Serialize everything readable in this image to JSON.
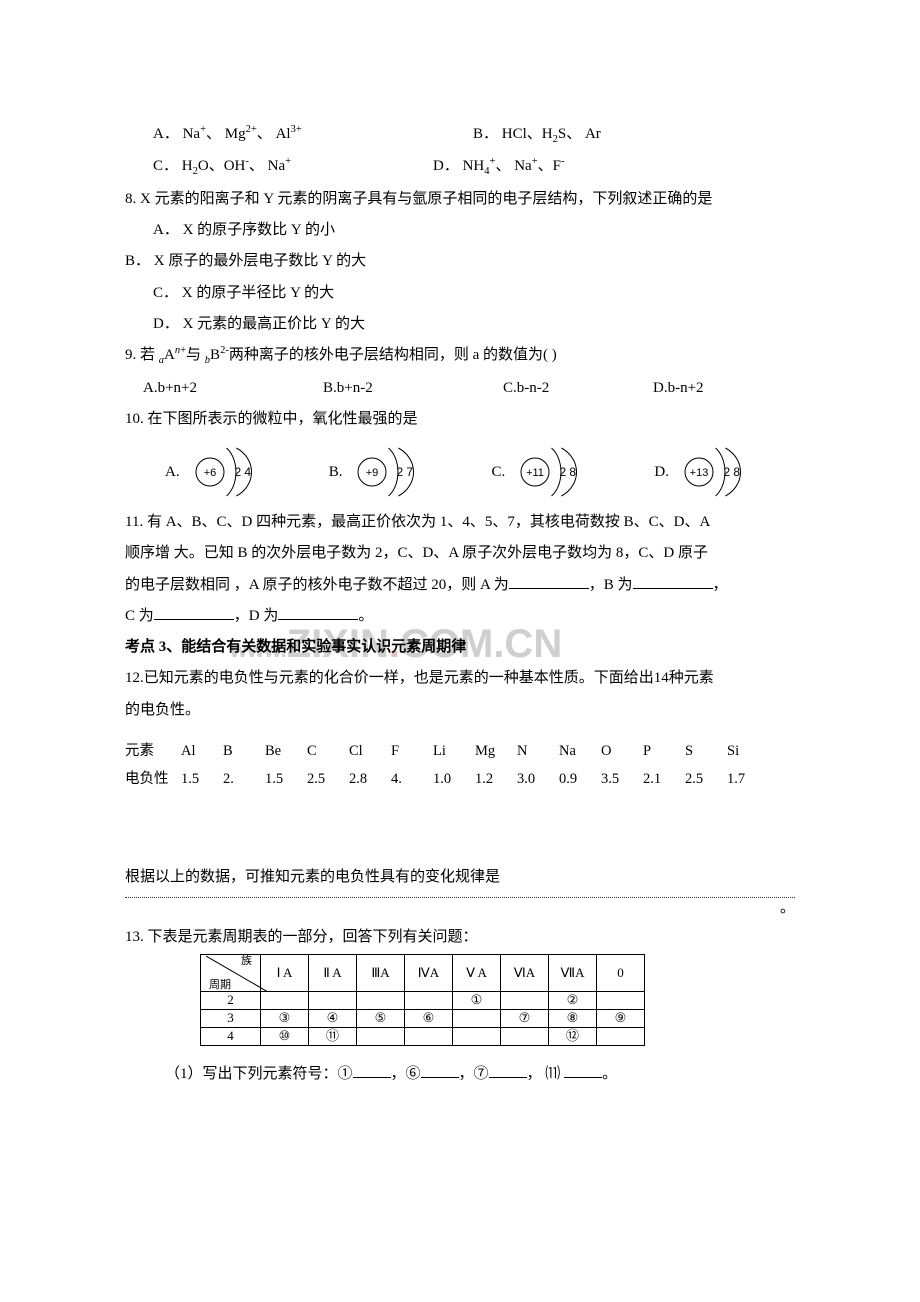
{
  "q7": {
    "optA_pre": "A．",
    "optA_s1": "Na",
    "optA_s2": "Mg",
    "optA_s3": "Al",
    "optB_pre": "B．",
    "optB_s1": "HCl、H",
    "optB_s2": "S、 Ar",
    "optC_pre": "C．",
    "optC_s1": "H",
    "optC_s2": "O、OH",
    "optC_s3": "、 Na",
    "optD_pre": "D．",
    "optD_s1": "NH",
    "optD_s2": "、 Na",
    "optD_s3": "、F"
  },
  "q8": {
    "stem": "8. X 元素的阳离子和 Y 元素的阴离子具有与氩原子相同的电子层结构，下列叙述正确的是",
    "A": "A．  X 的原子序数比 Y 的小",
    "B": "B．  X 原子的最外层电子数比 Y 的大",
    "C": "C．  X 的原子半径比 Y 的大",
    "D": "D．  X 元素的最高正价比 Y 的大"
  },
  "q9": {
    "stem_pre": "9.  若 ",
    "stem_mid1": "A",
    "stem_mid2": "与 ",
    "stem_mid3": "B",
    "stem_post": "两种离子的核外电子层结构相同，则 a 的数值为(       )",
    "A": "A.b+n+2",
    "B": "B.b+n-2",
    "C": "C.b-n-2",
    "D": "D.b-n+2"
  },
  "q10": {
    "stem": "10.  在下图所表示的微粒中，氧化性最强的是",
    "diagrams": [
      {
        "label": "A.",
        "core": "+6",
        "shells": [
          "2",
          "4"
        ]
      },
      {
        "label": "B.",
        "core": "+9",
        "shells": [
          "2",
          "7"
        ]
      },
      {
        "label": "C.",
        "core": "+11",
        "shells": [
          "2",
          "8"
        ]
      },
      {
        "label": "D.",
        "core": "+13",
        "shells": [
          "2",
          "8"
        ]
      }
    ]
  },
  "q11": {
    "l1": "11.  有 A、B、C、D 四种元素，最高正价依次为 1、4、5、7，其核电荷数按 B、C、D、A",
    "l2": "顺序增 大。已知 B 的次外层电子数为 2，C、D、A 原子次外层电子数均为 8，C、D 原子",
    "l3_pre": "的电子层数相同 ，A 原子的核外电子数不超过 20，则 A 为",
    "l3_mid": "，B 为",
    "l3_end": "，",
    "l4_pre": "C 为",
    "l4_mid": "，D 为",
    "l4_end": "。"
  },
  "section3": "考点 3、能结合有关数据和实验事实认识元素周期律",
  "q12": {
    "l1": "12.已知元素的电负性与元素的化合价一样，也是元素的一种基本性质。下面给出14种元素",
    "l2": "的电负性。",
    "h_elem": "元素",
    "h_en": "电负性",
    "elems": [
      "Al",
      "B",
      "Be",
      "C",
      "Cl",
      "F",
      "Li",
      "Mg",
      "N",
      "Na",
      "O",
      "P",
      "S",
      "Si"
    ],
    "vals": [
      "1.5",
      "2.",
      "1.5",
      "2.5",
      "2.8",
      "4.",
      "1.0",
      "1.2",
      "3.0",
      "0.9",
      "3.5",
      "2.1",
      "2.5",
      "1.7"
    ],
    "l3": "根据以上的数据，可推知元素的电负性具有的变化规律是",
    "l3_end": "。"
  },
  "q13": {
    "stem": "13.  下表是元素周期表的一部分，回答下列有关问题：",
    "header_group": "族",
    "header_period": "周期",
    "groups": [
      "Ⅰ A",
      "Ⅱ A",
      "ⅢA",
      "ⅣA",
      "Ⅴ A",
      "ⅥA",
      "ⅦA",
      "0"
    ],
    "periods": [
      "2",
      "3",
      "4"
    ],
    "cells": {
      "r2": [
        "",
        "",
        "",
        "",
        "①",
        "",
        "②",
        ""
      ],
      "r3": [
        "③",
        "④",
        "⑤",
        "⑥",
        "",
        "⑦",
        "⑧",
        "⑨"
      ],
      "r4": [
        "⑩",
        "⑪",
        "",
        "",
        "",
        "",
        "⑫",
        ""
      ]
    },
    "sub1_pre": "（1）写出下列元素符号：①",
    "sub1_m1": "，⑥",
    "sub1_m2": "，⑦",
    "sub1_m3": "，  ⑾ ",
    "sub1_end": "。"
  },
  "watermark_black": "ZIXIN",
  "watermark_dot": ".",
  "watermark_rest": "COM.CN"
}
